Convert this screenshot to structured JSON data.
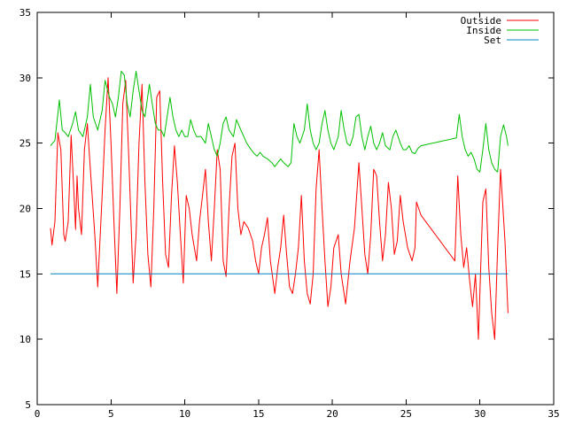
{
  "chart_data": {
    "type": "line",
    "title": "",
    "xlabel": "",
    "ylabel": "",
    "xlim": [
      0,
      35
    ],
    "ylim": [
      5,
      35
    ],
    "xticks": [
      0,
      5,
      10,
      15,
      20,
      25,
      30,
      35
    ],
    "yticks": [
      5,
      10,
      15,
      20,
      25,
      30,
      35
    ],
    "grid": false,
    "legend_position": "top-right",
    "series": [
      {
        "name": "Outside",
        "color": "#ff0000",
        "points": [
          [
            0.9,
            18.5
          ],
          [
            1.0,
            17.2
          ],
          [
            1.2,
            19.0
          ],
          [
            1.4,
            25.8
          ],
          [
            1.6,
            24.5
          ],
          [
            1.8,
            18.0
          ],
          [
            1.9,
            17.5
          ],
          [
            2.1,
            19.0
          ],
          [
            2.3,
            25.6
          ],
          [
            2.5,
            21.0
          ],
          [
            2.6,
            18.4
          ],
          [
            2.7,
            22.5
          ],
          [
            2.8,
            20.0
          ],
          [
            3.0,
            18.0
          ],
          [
            3.2,
            24.5
          ],
          [
            3.4,
            26.5
          ],
          [
            3.6,
            23.0
          ],
          [
            3.9,
            18.0
          ],
          [
            4.1,
            14.0
          ],
          [
            4.4,
            21.0
          ],
          [
            4.6,
            26.0
          ],
          [
            4.8,
            30.0
          ],
          [
            5.0,
            25.0
          ],
          [
            5.2,
            19.0
          ],
          [
            5.4,
            13.5
          ],
          [
            5.6,
            20.0
          ],
          [
            5.8,
            28.0
          ],
          [
            6.0,
            29.8
          ],
          [
            6.2,
            24.0
          ],
          [
            6.5,
            14.3
          ],
          [
            6.7,
            18.0
          ],
          [
            6.9,
            25.0
          ],
          [
            7.1,
            29.5
          ],
          [
            7.3,
            22.0
          ],
          [
            7.5,
            16.5
          ],
          [
            7.7,
            14.0
          ],
          [
            7.9,
            20.0
          ],
          [
            8.1,
            28.5
          ],
          [
            8.3,
            29.0
          ],
          [
            8.5,
            22.0
          ],
          [
            8.7,
            16.5
          ],
          [
            8.9,
            15.5
          ],
          [
            9.1,
            21.0
          ],
          [
            9.3,
            24.8
          ],
          [
            9.5,
            22.0
          ],
          [
            9.7,
            18.0
          ],
          [
            9.9,
            14.3
          ],
          [
            10.1,
            21.0
          ],
          [
            10.3,
            20.0
          ],
          [
            10.5,
            18.0
          ],
          [
            10.8,
            16.0
          ],
          [
            11.0,
            19.0
          ],
          [
            11.2,
            21.0
          ],
          [
            11.4,
            23.0
          ],
          [
            11.6,
            19.0
          ],
          [
            11.8,
            16.0
          ],
          [
            12.0,
            20.0
          ],
          [
            12.2,
            24.5
          ],
          [
            12.4,
            23.0
          ],
          [
            12.6,
            16.0
          ],
          [
            12.8,
            14.8
          ],
          [
            13.0,
            20.0
          ],
          [
            13.2,
            24.0
          ],
          [
            13.4,
            25.0
          ],
          [
            13.6,
            20.0
          ],
          [
            13.8,
            18.0
          ],
          [
            14.0,
            19.0
          ],
          [
            14.3,
            18.5
          ],
          [
            14.6,
            17.5
          ],
          [
            14.8,
            16.0
          ],
          [
            15.0,
            15.0
          ],
          [
            15.2,
            17.0
          ],
          [
            15.4,
            18.0
          ],
          [
            15.6,
            19.3
          ],
          [
            15.8,
            16.0
          ],
          [
            16.1,
            13.5
          ],
          [
            16.3,
            15.5
          ],
          [
            16.5,
            17.0
          ],
          [
            16.7,
            19.5
          ],
          [
            16.9,
            16.5
          ],
          [
            17.1,
            14.0
          ],
          [
            17.3,
            13.5
          ],
          [
            17.5,
            15.0
          ],
          [
            17.7,
            17.0
          ],
          [
            17.9,
            21.0
          ],
          [
            18.1,
            16.0
          ],
          [
            18.3,
            13.5
          ],
          [
            18.5,
            12.7
          ],
          [
            18.7,
            15.0
          ],
          [
            18.9,
            21.5
          ],
          [
            19.1,
            24.5
          ],
          [
            19.3,
            20.0
          ],
          [
            19.5,
            16.0
          ],
          [
            19.7,
            12.5
          ],
          [
            19.9,
            14.0
          ],
          [
            20.1,
            17.0
          ],
          [
            20.4,
            18.0
          ],
          [
            20.6,
            15.0
          ],
          [
            20.9,
            12.7
          ],
          [
            21.2,
            16.0
          ],
          [
            21.5,
            18.5
          ],
          [
            21.8,
            23.5
          ],
          [
            22.0,
            20.0
          ],
          [
            22.2,
            16.5
          ],
          [
            22.4,
            15.0
          ],
          [
            22.6,
            18.0
          ],
          [
            22.8,
            23.0
          ],
          [
            23.0,
            22.5
          ],
          [
            23.2,
            19.0
          ],
          [
            23.4,
            16.0
          ],
          [
            23.6,
            18.0
          ],
          [
            23.8,
            22.0
          ],
          [
            24.0,
            20.0
          ],
          [
            24.2,
            16.5
          ],
          [
            24.4,
            17.5
          ],
          [
            24.6,
            21.0
          ],
          [
            24.8,
            19.0
          ],
          [
            25.1,
            17.0
          ],
          [
            25.4,
            16.0
          ],
          [
            25.6,
            17.0
          ],
          [
            25.7,
            20.5
          ],
          [
            26.0,
            19.5
          ],
          [
            28.3,
            16.0
          ],
          [
            28.5,
            22.5
          ],
          [
            28.7,
            18.0
          ],
          [
            28.9,
            15.5
          ],
          [
            29.1,
            17.0
          ],
          [
            29.3,
            14.5
          ],
          [
            29.5,
            12.5
          ],
          [
            29.7,
            15.0
          ],
          [
            29.9,
            10.0
          ],
          [
            30.2,
            20.5
          ],
          [
            30.4,
            21.5
          ],
          [
            30.6,
            15.5
          ],
          [
            30.8,
            12.0
          ],
          [
            31.0,
            10.0
          ],
          [
            31.2,
            17.0
          ],
          [
            31.4,
            23.0
          ],
          [
            31.7,
            17.5
          ],
          [
            31.9,
            12.0
          ]
        ]
      },
      {
        "name": "Inside",
        "color": "#00c000",
        "points": [
          [
            0.9,
            24.8
          ],
          [
            1.2,
            25.2
          ],
          [
            1.5,
            28.3
          ],
          [
            1.7,
            26.0
          ],
          [
            1.9,
            25.8
          ],
          [
            2.1,
            25.5
          ],
          [
            2.4,
            26.5
          ],
          [
            2.6,
            27.4
          ],
          [
            2.8,
            26.0
          ],
          [
            3.1,
            25.5
          ],
          [
            3.4,
            27.0
          ],
          [
            3.6,
            29.5
          ],
          [
            3.8,
            27.0
          ],
          [
            4.1,
            26.0
          ],
          [
            4.4,
            27.5
          ],
          [
            4.6,
            29.8
          ],
          [
            4.9,
            28.5
          ],
          [
            5.1,
            28.0
          ],
          [
            5.3,
            27.0
          ],
          [
            5.5,
            28.5
          ],
          [
            5.7,
            30.5
          ],
          [
            5.9,
            30.2
          ],
          [
            6.1,
            28.0
          ],
          [
            6.3,
            27.0
          ],
          [
            6.5,
            29.0
          ],
          [
            6.7,
            30.5
          ],
          [
            6.9,
            29.0
          ],
          [
            7.1,
            27.5
          ],
          [
            7.3,
            27.0
          ],
          [
            7.6,
            29.5
          ],
          [
            7.8,
            28.0
          ],
          [
            8.0,
            26.5
          ],
          [
            8.2,
            26.0
          ],
          [
            8.4,
            26.0
          ],
          [
            8.6,
            25.5
          ],
          [
            8.8,
            27.0
          ],
          [
            9.0,
            28.5
          ],
          [
            9.2,
            27.0
          ],
          [
            9.4,
            26.0
          ],
          [
            9.6,
            25.5
          ],
          [
            9.8,
            26.0
          ],
          [
            10.0,
            25.5
          ],
          [
            10.2,
            25.5
          ],
          [
            10.4,
            26.8
          ],
          [
            10.6,
            26.0
          ],
          [
            10.8,
            25.5
          ],
          [
            11.1,
            25.5
          ],
          [
            11.4,
            25.0
          ],
          [
            11.6,
            26.5
          ],
          [
            11.8,
            25.5
          ],
          [
            12.0,
            24.5
          ],
          [
            12.2,
            24.0
          ],
          [
            12.4,
            25.0
          ],
          [
            12.6,
            26.5
          ],
          [
            12.8,
            27.0
          ],
          [
            13.0,
            26.0
          ],
          [
            13.3,
            25.5
          ],
          [
            13.5,
            26.8
          ],
          [
            13.8,
            26.0
          ],
          [
            14.0,
            25.5
          ],
          [
            14.2,
            25.0
          ],
          [
            14.5,
            24.5
          ],
          [
            14.7,
            24.2
          ],
          [
            14.9,
            24.0
          ],
          [
            15.1,
            24.3
          ],
          [
            15.3,
            24.0
          ],
          [
            15.6,
            23.8
          ],
          [
            15.9,
            23.5
          ],
          [
            16.1,
            23.2
          ],
          [
            16.3,
            23.5
          ],
          [
            16.5,
            23.8
          ],
          [
            16.7,
            23.5
          ],
          [
            17.0,
            23.2
          ],
          [
            17.2,
            23.5
          ],
          [
            17.4,
            26.5
          ],
          [
            17.6,
            25.5
          ],
          [
            17.8,
            25.0
          ],
          [
            18.1,
            26.0
          ],
          [
            18.3,
            28.0
          ],
          [
            18.5,
            26.0
          ],
          [
            18.7,
            25.0
          ],
          [
            18.9,
            24.5
          ],
          [
            19.1,
            25.0
          ],
          [
            19.3,
            26.5
          ],
          [
            19.5,
            27.5
          ],
          [
            19.7,
            26.0
          ],
          [
            19.9,
            25.0
          ],
          [
            20.1,
            24.5
          ],
          [
            20.4,
            25.5
          ],
          [
            20.6,
            27.5
          ],
          [
            20.8,
            26.0
          ],
          [
            21.0,
            25.0
          ],
          [
            21.2,
            24.8
          ],
          [
            21.4,
            25.5
          ],
          [
            21.6,
            27.0
          ],
          [
            21.8,
            27.2
          ],
          [
            22.0,
            25.5
          ],
          [
            22.2,
            24.5
          ],
          [
            22.4,
            25.5
          ],
          [
            22.6,
            26.3
          ],
          [
            22.8,
            25.0
          ],
          [
            23.0,
            24.5
          ],
          [
            23.2,
            25.0
          ],
          [
            23.4,
            25.8
          ],
          [
            23.6,
            24.8
          ],
          [
            23.9,
            24.5
          ],
          [
            24.1,
            25.5
          ],
          [
            24.3,
            26.0
          ],
          [
            24.6,
            25.0
          ],
          [
            24.8,
            24.5
          ],
          [
            25.0,
            24.5
          ],
          [
            25.2,
            24.8
          ],
          [
            25.4,
            24.3
          ],
          [
            25.6,
            24.2
          ],
          [
            25.8,
            24.6
          ],
          [
            26.0,
            24.8
          ],
          [
            28.4,
            25.4
          ],
          [
            28.6,
            27.2
          ],
          [
            28.8,
            25.5
          ],
          [
            29.0,
            24.5
          ],
          [
            29.2,
            24.0
          ],
          [
            29.4,
            24.3
          ],
          [
            29.6,
            23.8
          ],
          [
            29.8,
            23.0
          ],
          [
            30.0,
            22.8
          ],
          [
            30.2,
            24.5
          ],
          [
            30.4,
            26.5
          ],
          [
            30.6,
            24.5
          ],
          [
            30.8,
            23.5
          ],
          [
            31.0,
            23.0
          ],
          [
            31.2,
            22.8
          ],
          [
            31.4,
            25.5
          ],
          [
            31.6,
            26.4
          ],
          [
            31.8,
            25.5
          ],
          [
            31.9,
            24.8
          ]
        ]
      },
      {
        "name": "Set",
        "color": "#0080c0",
        "points": [
          [
            0.9,
            15.0
          ],
          [
            31.9,
            15.0
          ]
        ]
      }
    ]
  }
}
